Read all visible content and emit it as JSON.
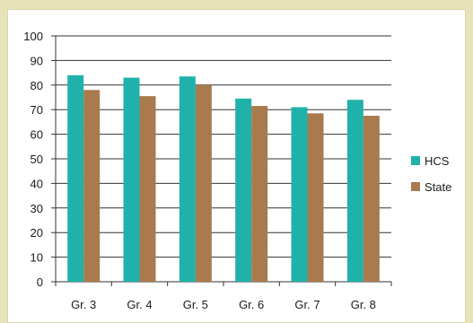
{
  "chart_data": {
    "type": "bar",
    "categories": [
      "Gr. 3",
      "Gr. 4",
      "Gr. 5",
      "Gr. 6",
      "Gr. 7",
      "Gr. 8"
    ],
    "series": [
      {
        "name": "HCS",
        "color": "#20b2aa",
        "values": [
          84,
          83,
          83.5,
          74.5,
          71,
          74
        ]
      },
      {
        "name": "State",
        "color": "#a97a4e",
        "values": [
          78,
          75.5,
          80,
          71.5,
          68.5,
          67.5
        ]
      }
    ],
    "ylim": [
      0,
      100
    ],
    "yticks": [
      0,
      10,
      20,
      30,
      40,
      50,
      60,
      70,
      80,
      90,
      100
    ],
    "grid": true,
    "legend_position": "right",
    "title": "",
    "xlabel": "",
    "ylabel": ""
  }
}
